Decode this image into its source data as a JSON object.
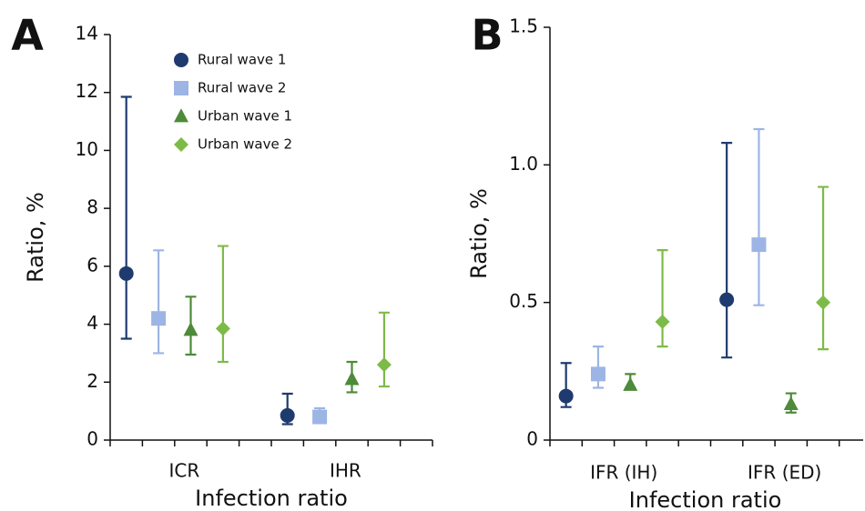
{
  "chart_data": [
    {
      "type": "errorbar",
      "panel_label": "A",
      "y_label": "Ratio, %",
      "x_label": "Infection ratio",
      "categories": [
        "ICR",
        "IHR"
      ],
      "ylim": [
        0,
        14
      ],
      "yticks": [
        0,
        2,
        4,
        6,
        8,
        10,
        12,
        14
      ],
      "legend": "upper-left",
      "series": [
        {
          "name": "Rural wave 1",
          "color": "#1f3a6e",
          "marker": "circle",
          "values": [
            5.75,
            0.85
          ],
          "lower": [
            3.5,
            0.55
          ],
          "upper": [
            11.85,
            1.6
          ]
        },
        {
          "name": "Rural wave 2",
          "color": "#9db5e4",
          "marker": "square",
          "values": [
            4.2,
            0.8
          ],
          "lower": [
            3.0,
            0.65
          ],
          "upper": [
            6.55,
            1.1
          ]
        },
        {
          "name": "Urban wave 1",
          "color": "#4d8a39",
          "marker": "triangle",
          "values": [
            3.8,
            2.1
          ],
          "lower": [
            2.95,
            1.65
          ],
          "upper": [
            4.95,
            2.7
          ]
        },
        {
          "name": "Urban wave  2",
          "color": "#7dbb48",
          "marker": "diamond",
          "values": [
            3.85,
            2.6
          ],
          "lower": [
            2.7,
            1.85
          ],
          "upper": [
            6.7,
            4.4
          ]
        }
      ]
    },
    {
      "type": "errorbar",
      "panel_label": "B",
      "y_label": "Ratio, %",
      "x_label": "Infection ratio",
      "categories": [
        "IFR (IH)",
        "IFR (ED)"
      ],
      "ylim": [
        0,
        1.5
      ],
      "yticks": [
        0,
        0.5,
        {
          "value": 1,
          "label": "1.0"
        },
        1.5
      ],
      "series": [
        {
          "name": "Rural wave 1",
          "color": "#1f3a6e",
          "marker": "circle",
          "values": [
            0.16,
            0.51
          ],
          "lower": [
            0.12,
            0.3
          ],
          "upper": [
            0.28,
            1.08
          ]
        },
        {
          "name": "Rural wave 2",
          "color": "#9db5e4",
          "marker": "square",
          "values": [
            0.24,
            0.71
          ],
          "lower": [
            0.19,
            0.49
          ],
          "upper": [
            0.34,
            1.13
          ]
        },
        {
          "name": "Urban wave 1",
          "color": "#4d8a39",
          "marker": "triangle",
          "values": [
            0.2,
            0.13
          ],
          "lower": [
            0.19,
            0.1
          ],
          "upper": [
            0.24,
            0.17
          ]
        },
        {
          "name": "Urban wave  2",
          "color": "#7dbb48",
          "marker": "diamond",
          "values": [
            0.43,
            0.5
          ],
          "lower": [
            0.34,
            0.33
          ],
          "upper": [
            0.69,
            0.92
          ]
        }
      ]
    }
  ]
}
